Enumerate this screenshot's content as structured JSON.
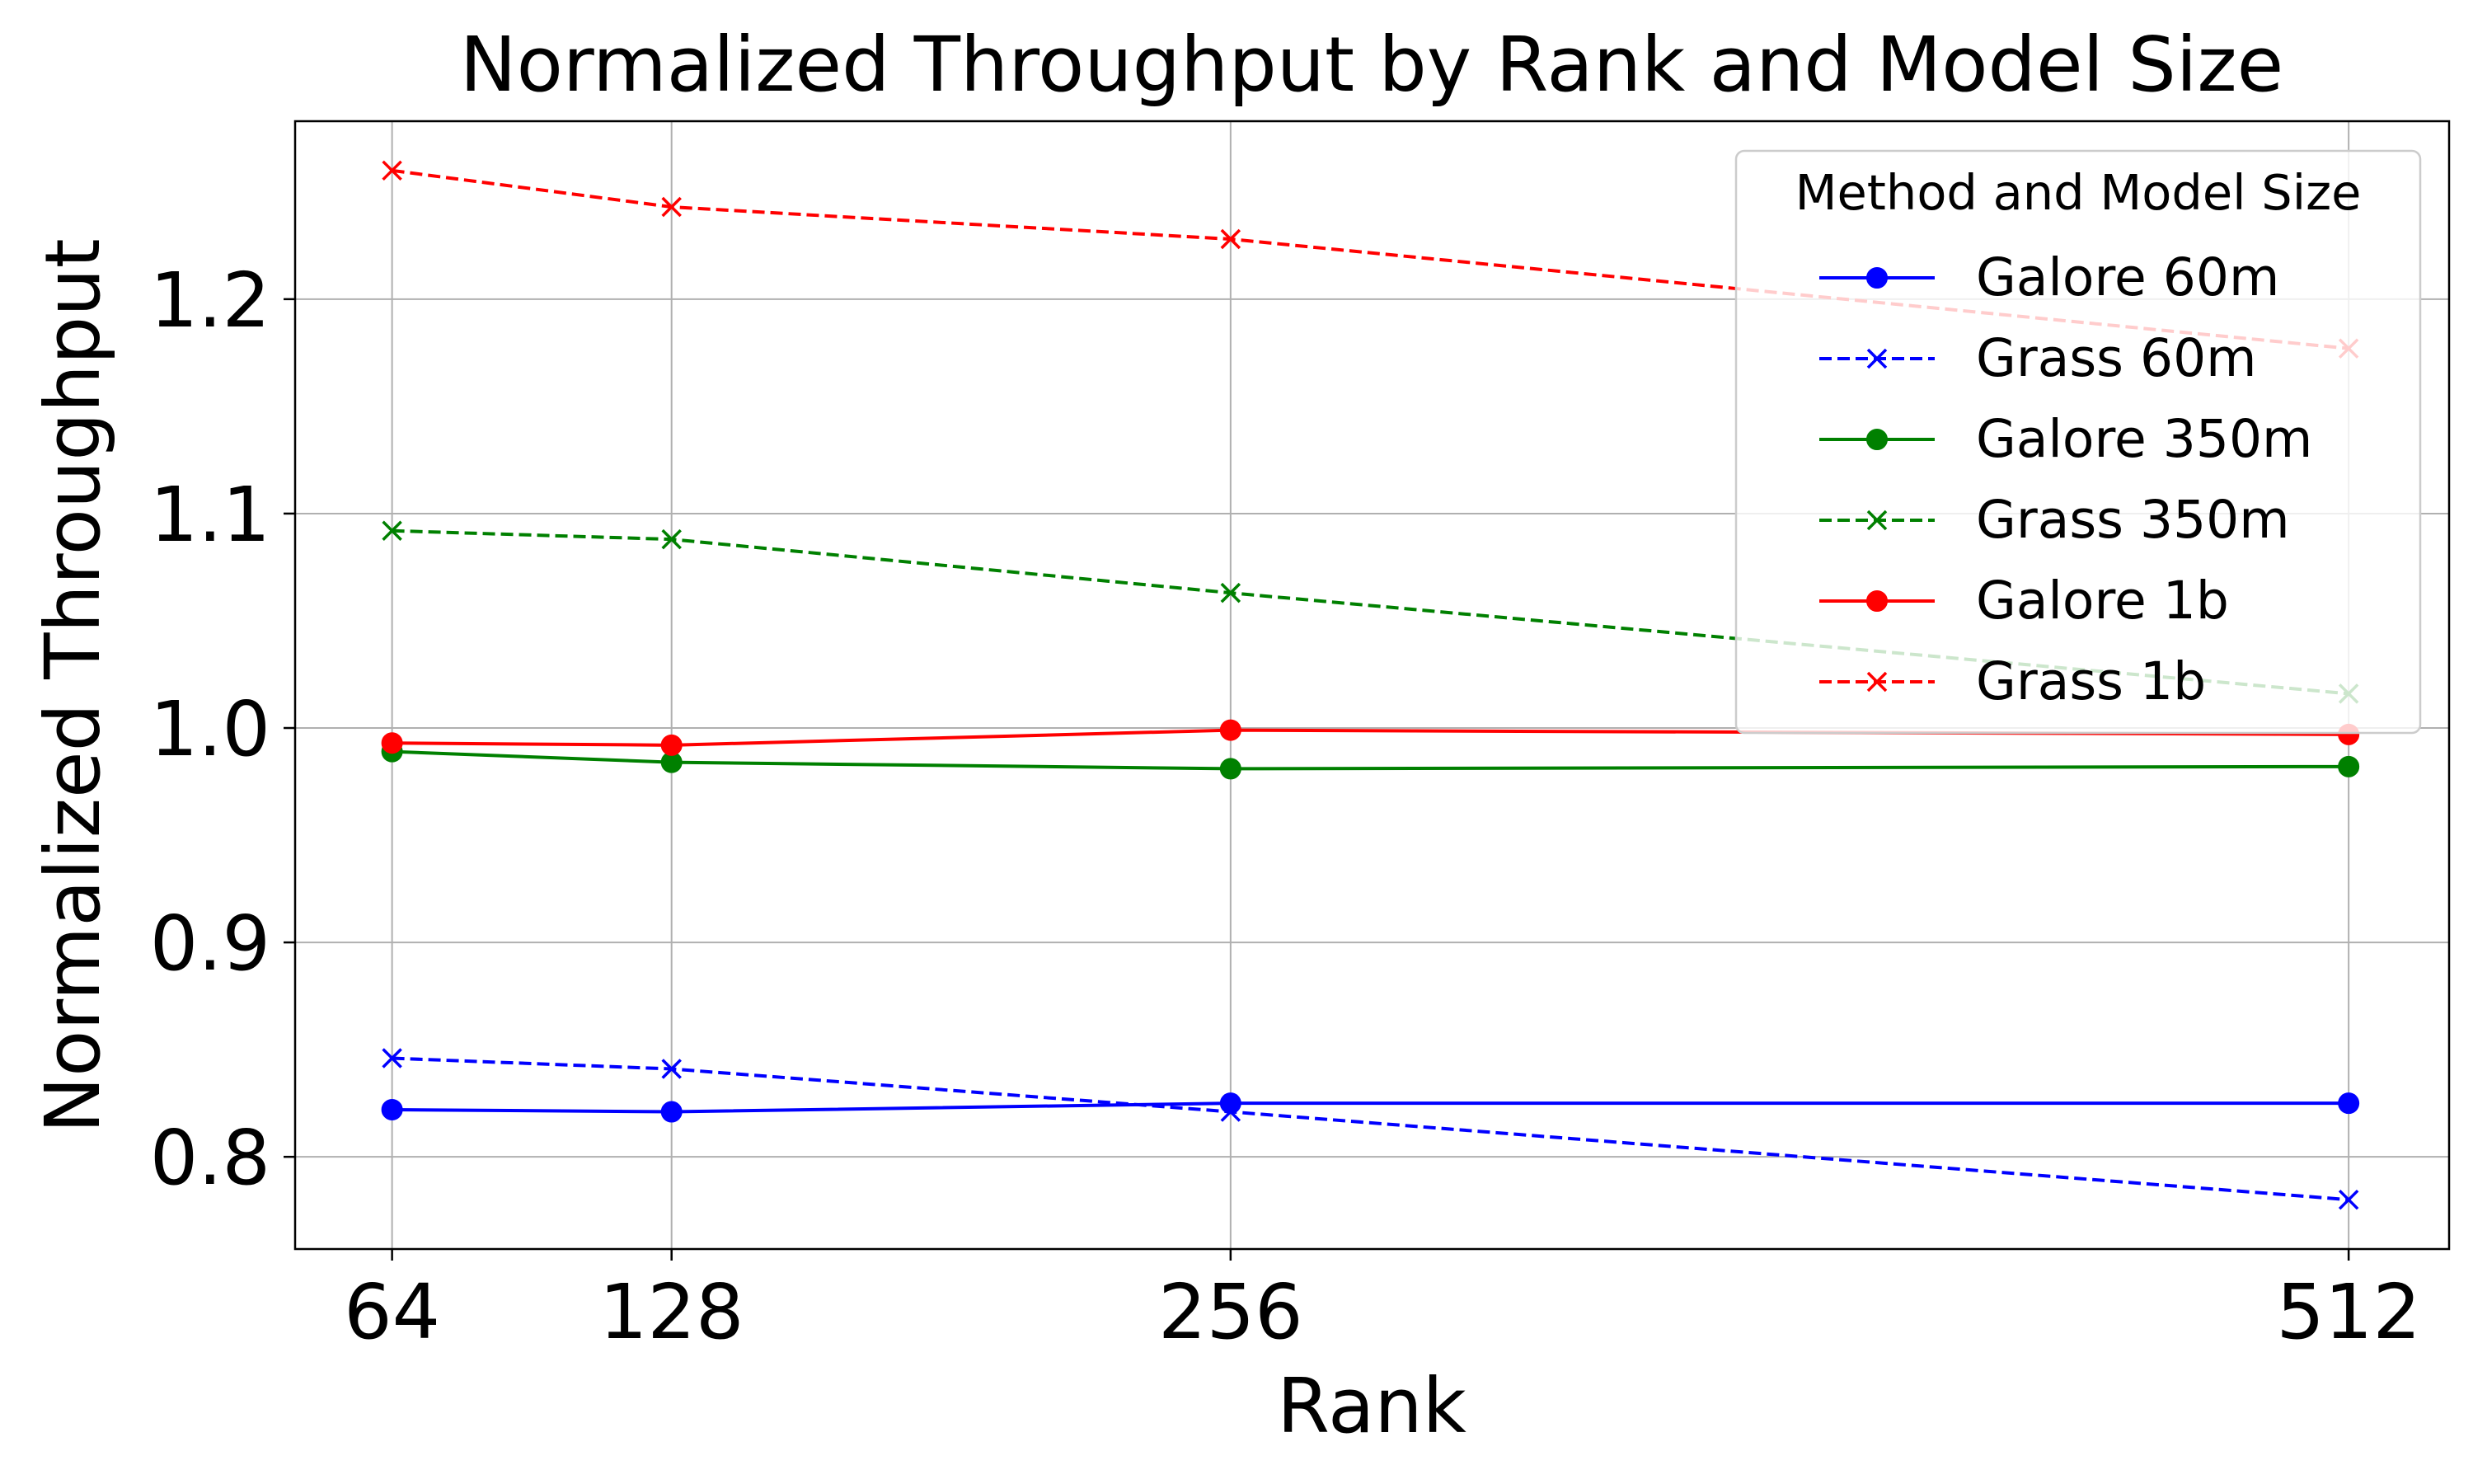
{
  "chart_data": {
    "type": "line",
    "title": "Normalized Throughput by Rank and Model Size",
    "xlabel": "Rank",
    "ylabel": "Normalized Throughput",
    "x": [
      64,
      128,
      256,
      512
    ],
    "xticks": [
      "64",
      "128",
      "256",
      "512"
    ],
    "xlim": [
      41.8,
      535
    ],
    "yticks": [
      "0.8",
      "0.9",
      "1.0",
      "1.1",
      "1.2"
    ],
    "ylim": [
      0.757,
      1.283
    ],
    "grid": true,
    "legend": {
      "title": "Method and Model Size",
      "placement": "top-right"
    },
    "series": [
      {
        "name": "Galore 60m",
        "color": "#0000ff",
        "linestyle": "solid",
        "marker": "circle",
        "values": [
          0.822,
          0.821,
          0.825,
          0.825
        ]
      },
      {
        "name": "Grass 60m",
        "color": "#0000ff",
        "linestyle": "dashed",
        "marker": "x",
        "values": [
          0.846,
          0.841,
          0.821,
          0.78
        ]
      },
      {
        "name": "Galore 350m",
        "color": "#008000",
        "linestyle": "solid",
        "marker": "circle",
        "values": [
          0.989,
          0.984,
          0.981,
          0.982
        ]
      },
      {
        "name": "Grass 350m",
        "color": "#008000",
        "linestyle": "dashed",
        "marker": "x",
        "values": [
          1.092,
          1.088,
          1.063,
          1.016
        ]
      },
      {
        "name": "Galore 1b",
        "color": "#ff0000",
        "linestyle": "solid",
        "marker": "circle",
        "values": [
          0.993,
          0.992,
          0.999,
          0.997
        ]
      },
      {
        "name": "Grass 1b",
        "color": "#ff0000",
        "linestyle": "dashed",
        "marker": "x",
        "values": [
          1.26,
          1.243,
          1.228,
          1.177
        ]
      }
    ]
  }
}
